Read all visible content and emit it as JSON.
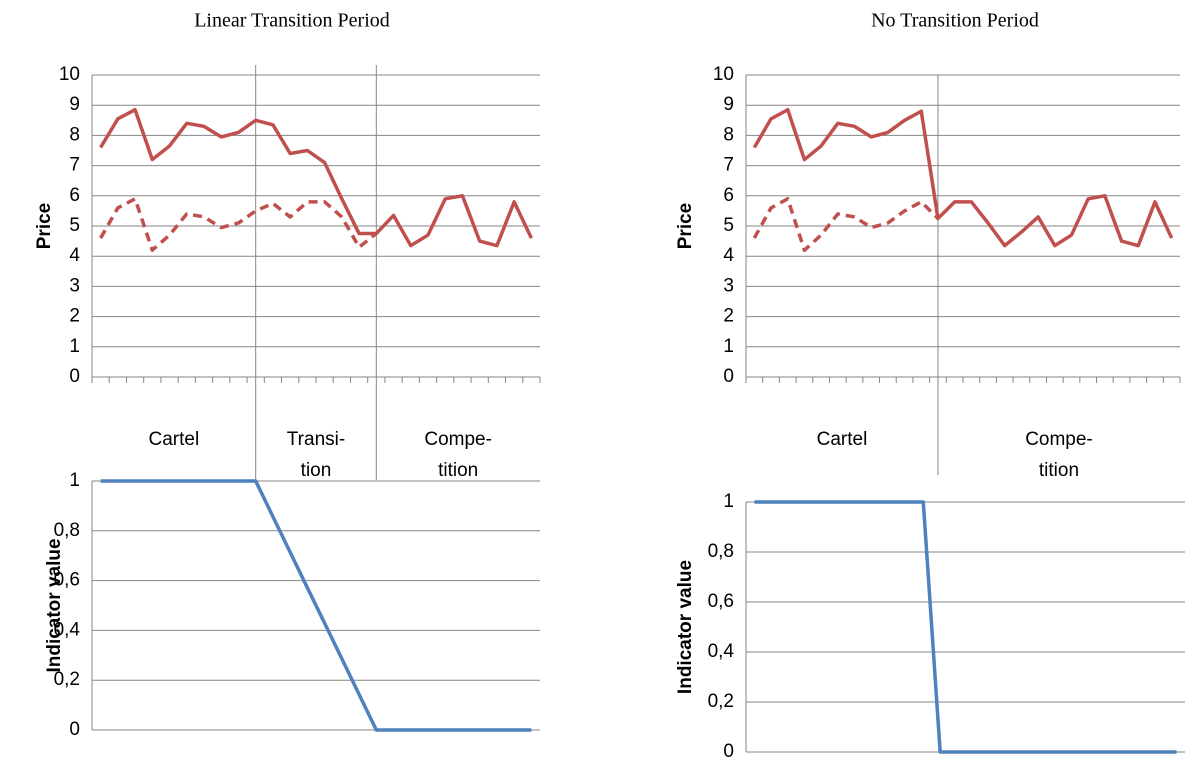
{
  "chart_data": [
    {
      "type": "line",
      "title": "Linear Transition Period",
      "y_label": "Price",
      "categories": [
        null,
        null,
        null,
        null,
        null,
        null,
        null,
        null,
        null,
        null,
        null,
        null,
        null,
        null,
        null,
        null,
        null,
        null,
        null,
        null,
        null,
        null,
        null,
        null,
        null,
        null
      ],
      "groups": [
        {
          "lines": [
            "Cartel"
          ],
          "from": 0,
          "to": 9
        },
        {
          "lines": [
            "Transi-",
            "tion"
          ],
          "from": 9,
          "to": 16
        },
        {
          "lines": [
            "Compe-",
            "tition"
          ],
          "from": 16,
          "to": 25
        }
      ],
      "series": [
        {
          "color": "#c0504d",
          "style": "solid",
          "values": [
            7.6,
            8.55,
            8.85,
            7.2,
            7.65,
            8.4,
            8.3,
            7.95,
            8.1,
            8.5,
            8.35,
            7.4,
            7.5,
            7.1,
            5.9,
            4.75,
            4.75,
            5.35,
            4.35,
            4.7,
            5.9,
            6.0,
            4.5,
            4.35,
            5.8,
            4.6
          ]
        },
        {
          "color": "#c0504d",
          "style": "dashed",
          "values": [
            4.6,
            5.6,
            5.9,
            4.2,
            4.7,
            5.4,
            5.3,
            4.95,
            5.1,
            5.5,
            5.75,
            5.3,
            5.8,
            5.8,
            5.3,
            4.3,
            4.75,
            null,
            null,
            null,
            null,
            null,
            null,
            null,
            null,
            null
          ]
        }
      ],
      "ylim": [
        0,
        10
      ],
      "yticks": [
        0,
        1,
        2,
        3,
        4,
        5,
        6,
        7,
        8,
        9,
        10
      ],
      "grid": true
    },
    {
      "type": "line",
      "title": "No Transition Period",
      "y_label": "Price",
      "categories": [
        null,
        null,
        null,
        null,
        null,
        null,
        null,
        null,
        null,
        null,
        null,
        null,
        null,
        null,
        null,
        null,
        null,
        null,
        null,
        null,
        null,
        null,
        null,
        null,
        null,
        null
      ],
      "groups": [
        {
          "lines": [
            "Cartel"
          ],
          "from": 0,
          "to": 11
        },
        {
          "lines": [
            "Compe-",
            "tition"
          ],
          "from": 11,
          "to": 25
        }
      ],
      "series": [
        {
          "color": "#c0504d",
          "style": "solid",
          "values": [
            7.6,
            8.55,
            8.85,
            7.2,
            7.65,
            8.4,
            8.3,
            7.95,
            8.1,
            8.5,
            8.8,
            5.25,
            5.8,
            5.8,
            5.1,
            4.35,
            4.8,
            5.3,
            4.35,
            4.7,
            5.9,
            6.0,
            4.5,
            4.35,
            5.8,
            4.6
          ]
        },
        {
          "color": "#c0504d",
          "style": "dashed",
          "values": [
            4.6,
            5.6,
            5.9,
            4.2,
            4.7,
            5.4,
            5.3,
            4.95,
            5.1,
            5.5,
            5.8,
            5.25,
            null,
            null,
            null,
            null,
            null,
            null,
            null,
            null,
            null,
            null,
            null,
            null,
            null,
            null
          ]
        }
      ],
      "ylim": [
        0,
        10
      ],
      "yticks": [
        0,
        1,
        2,
        3,
        4,
        5,
        6,
        7,
        8,
        9,
        10
      ],
      "grid": true
    },
    {
      "type": "line",
      "y_label": "Indicator value",
      "categories": [
        null,
        null,
        null,
        null,
        null,
        null,
        null,
        null,
        null,
        null,
        null,
        null,
        null,
        null,
        null,
        null,
        null,
        null,
        null,
        null,
        null,
        null,
        null,
        null,
        null,
        null
      ],
      "series": [
        {
          "color": "#4f81bd",
          "style": "solid",
          "values": [
            1,
            1,
            1,
            1,
            1,
            1,
            1,
            1,
            1,
            1,
            0.857,
            0.714,
            0.571,
            0.429,
            0.286,
            0.143,
            0,
            0,
            0,
            0,
            0,
            0,
            0,
            0,
            0,
            0
          ]
        }
      ],
      "ylim": [
        0,
        1
      ],
      "yticks": [
        0,
        {
          "value": 0.2,
          "label": "0,2"
        },
        {
          "value": 0.4,
          "label": "0,4"
        },
        {
          "value": 0.6,
          "label": "0,6"
        },
        {
          "value": 0.8,
          "label": "0,8"
        },
        1
      ],
      "grid": true
    },
    {
      "type": "line",
      "y_label": "Indicator value",
      "categories": [
        null,
        null,
        null,
        null,
        null,
        null,
        null,
        null,
        null,
        null,
        null,
        null,
        null,
        null,
        null,
        null,
        null,
        null,
        null,
        null,
        null,
        null,
        null,
        null,
        null,
        null
      ],
      "series": [
        {
          "color": "#4f81bd",
          "style": "solid",
          "values": [
            1,
            1,
            1,
            1,
            1,
            1,
            1,
            1,
            1,
            1,
            1,
            0,
            0,
            0,
            0,
            0,
            0,
            0,
            0,
            0,
            0,
            0,
            0,
            0,
            0,
            0
          ]
        }
      ],
      "ylim": [
        0,
        1
      ],
      "yticks": [
        0,
        {
          "value": 0.2,
          "label": "0,2"
        },
        {
          "value": 0.4,
          "label": "0,4"
        },
        {
          "value": 0.6,
          "label": "0,6"
        },
        {
          "value": 0.8,
          "label": "0,8"
        },
        1
      ],
      "grid": true
    }
  ]
}
